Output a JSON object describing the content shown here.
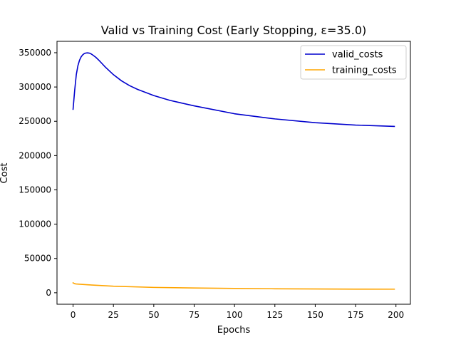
{
  "chart_data": {
    "type": "line",
    "title": "Valid vs Training Cost (Early Stopping, ε=35.0)",
    "xlabel": "Epochs",
    "ylabel": "Cost",
    "xlim": [
      -9.95,
      208.95
    ],
    "ylim": [
      -16750,
      366600
    ],
    "xticks": [
      0,
      25,
      50,
      75,
      100,
      125,
      150,
      175,
      200
    ],
    "yticks": [
      0,
      50000,
      100000,
      150000,
      200000,
      250000,
      300000,
      350000
    ],
    "grid": false,
    "legend_position": "upper right",
    "series": [
      {
        "name": "valid_costs",
        "color": "#0000cd",
        "x": [
          0,
          1,
          2,
          3,
          4,
          5,
          6,
          7,
          8,
          9,
          10,
          11,
          12,
          14,
          16,
          18,
          20,
          25,
          30,
          35,
          40,
          50,
          60,
          75,
          100,
          125,
          150,
          175,
          199
        ],
        "y": [
          267500,
          295000,
          318000,
          331000,
          339000,
          344000,
          347000,
          348800,
          349600,
          349800,
          349400,
          348500,
          347000,
          343500,
          339000,
          334000,
          329000,
          318000,
          309000,
          302000,
          296500,
          287500,
          280500,
          272500,
          261000,
          253500,
          248000,
          244500,
          242500
        ]
      },
      {
        "name": "training_costs",
        "color": "#ffa500",
        "x": [
          0,
          1,
          2,
          5,
          10,
          25,
          50,
          75,
          100,
          125,
          150,
          175,
          199
        ],
        "y": [
          14500,
          13200,
          12800,
          12300,
          11500,
          9500,
          7800,
          7000,
          6300,
          5800,
          5500,
          5300,
          5200
        ]
      }
    ]
  }
}
